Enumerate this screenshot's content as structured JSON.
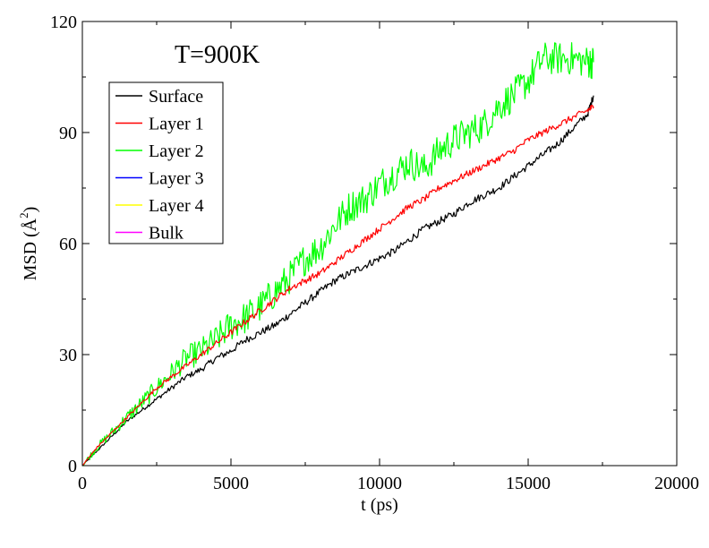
{
  "chart_data": {
    "type": "line",
    "annotation": "T=900K",
    "xlabel": "t (ps)",
    "ylabel_prefix": "MSD (",
    "ylabel_unit": "Å",
    "ylabel_exp": "2",
    "ylabel_suffix": ")",
    "xlim": [
      0,
      20000
    ],
    "ylim": [
      0,
      120
    ],
    "xticks": [
      0,
      5000,
      10000,
      15000,
      20000
    ],
    "yticks": [
      0,
      30,
      60,
      90,
      120
    ],
    "xtick_labels": [
      "0",
      "5000",
      "10000",
      "15000",
      "20000"
    ],
    "ytick_labels": [
      "0",
      "30",
      "60",
      "90",
      "120"
    ],
    "grid": false,
    "legend_position": "top-left",
    "series": [
      {
        "name": "Surface",
        "color": "#000000",
        "x": [
          0,
          500,
          1000,
          1500,
          2000,
          2500,
          3000,
          3500,
          4000,
          4500,
          5000,
          5500,
          6000,
          6500,
          7000,
          7500,
          8000,
          8500,
          9000,
          9500,
          10000,
          10500,
          11000,
          11500,
          12000,
          12500,
          13000,
          13500,
          14000,
          14500,
          15000,
          15500,
          16000,
          16500,
          17000,
          17200
        ],
        "y": [
          0,
          4,
          8,
          12,
          15,
          18,
          21,
          24,
          26,
          29,
          31,
          34,
          36,
          38,
          41,
          44,
          47,
          50,
          52,
          54,
          56,
          58,
          61,
          64,
          66,
          68,
          71,
          73,
          75,
          78,
          81,
          84,
          87,
          91,
          95,
          100
        ],
        "noise": 1.0
      },
      {
        "name": "Layer 1",
        "color": "#ff0000",
        "x": [
          0,
          500,
          1000,
          1500,
          2000,
          2500,
          3000,
          3500,
          4000,
          4500,
          5000,
          5500,
          6000,
          6500,
          7000,
          7500,
          8000,
          8500,
          9000,
          9500,
          10000,
          10500,
          11000,
          11500,
          12000,
          12500,
          13000,
          13500,
          14000,
          14500,
          15000,
          15500,
          16000,
          16500,
          17000,
          17200
        ],
        "y": [
          0,
          5,
          9,
          13,
          17,
          21,
          24,
          27,
          30,
          33,
          36,
          39,
          42,
          45,
          48,
          50,
          52,
          55,
          58,
          61,
          64,
          67,
          70,
          72,
          75,
          77,
          79,
          81,
          83,
          85,
          88,
          90,
          92,
          94,
          96,
          97
        ],
        "noise": 0.9
      },
      {
        "name": "Layer 2",
        "color": "#00ff00",
        "x": [
          0,
          500,
          1000,
          1500,
          2000,
          2500,
          3000,
          3500,
          4000,
          4500,
          5000,
          5500,
          6000,
          6500,
          7000,
          7500,
          8000,
          8500,
          9000,
          9500,
          10000,
          10500,
          11000,
          11500,
          12000,
          12500,
          13000,
          13500,
          14000,
          14500,
          15000,
          15500,
          16000,
          16500,
          17000,
          17200
        ],
        "y": [
          0,
          5,
          9,
          13,
          17,
          21,
          25,
          29,
          31,
          34,
          38,
          40,
          43,
          47,
          51,
          56,
          59,
          65,
          70,
          72,
          76,
          79,
          82,
          80,
          85,
          88,
          90,
          92,
          97,
          100,
          104,
          110,
          110,
          110,
          109,
          109
        ],
        "noise": 4.5
      },
      {
        "name": "Layer 3",
        "color": "#0000ff",
        "x": [],
        "y": [],
        "noise": 0
      },
      {
        "name": "Layer 4",
        "color": "#ffff00",
        "x": [],
        "y": [],
        "noise": 0
      },
      {
        "name": "Bulk",
        "color": "#ff00ff",
        "x": [],
        "y": [],
        "noise": 0
      }
    ]
  }
}
